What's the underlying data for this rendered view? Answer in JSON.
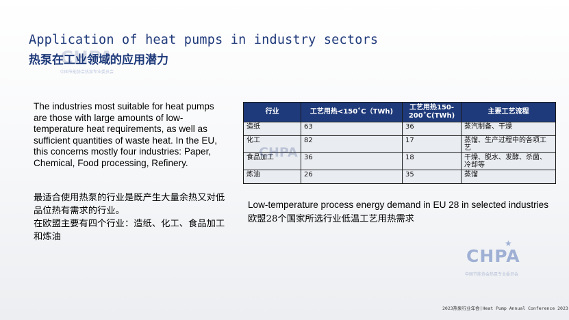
{
  "slide": {
    "title_en": "Application of heat pumps in industry sectors",
    "title_zh": "热泵在工业领域的应用潜力",
    "body_en": "The industries most suitable for heat pumps are those with large amounts of low-temperature heat requirements, as well as sufficient quantities of waste heat. In the EU, this concerns mostly four industries: Paper, Chemical, Food processing, Refinery.",
    "body_zh_1": "最适合使用热泵的行业是既产生大量余热又对低品位热有需求的行业。",
    "body_zh_2": "在欧盟主要有四个行业：造纸、化工、食品加工和炼油",
    "caption_en": "Low-temperature process energy demand in EU 28 in selected industries",
    "caption_zh": "欧盟28个国家所选行业低温工艺用热需求"
  },
  "table": {
    "headers": [
      "行业",
      "工艺用热<150˚C（TWh)",
      "工艺用热150-200˚C(TWh)",
      "主要工艺流程"
    ],
    "rows": [
      [
        "造纸",
        "63",
        "36",
        "蒸汽制备、干燥"
      ],
      [
        "化工",
        "82",
        "17",
        "蒸馏、生产过程中的各项工艺"
      ],
      [
        "食品加工",
        "36",
        "18",
        "干燥、脱水、发酵、杀菌、冷却等"
      ],
      [
        "炼油",
        "26",
        "35",
        "蒸馏"
      ]
    ]
  },
  "watermarks": {
    "logo_text": "CHPA",
    "logo_sub": "中国节能协会热泵专业委员会"
  },
  "footer": {
    "text": "2023热泵行业年会|Heat Pump Annual Conference 2023"
  },
  "colors": {
    "title": "#1f3a7a",
    "table_header_bg": "#1f3a7a",
    "table_cell_bg": "#e9ecf1"
  }
}
